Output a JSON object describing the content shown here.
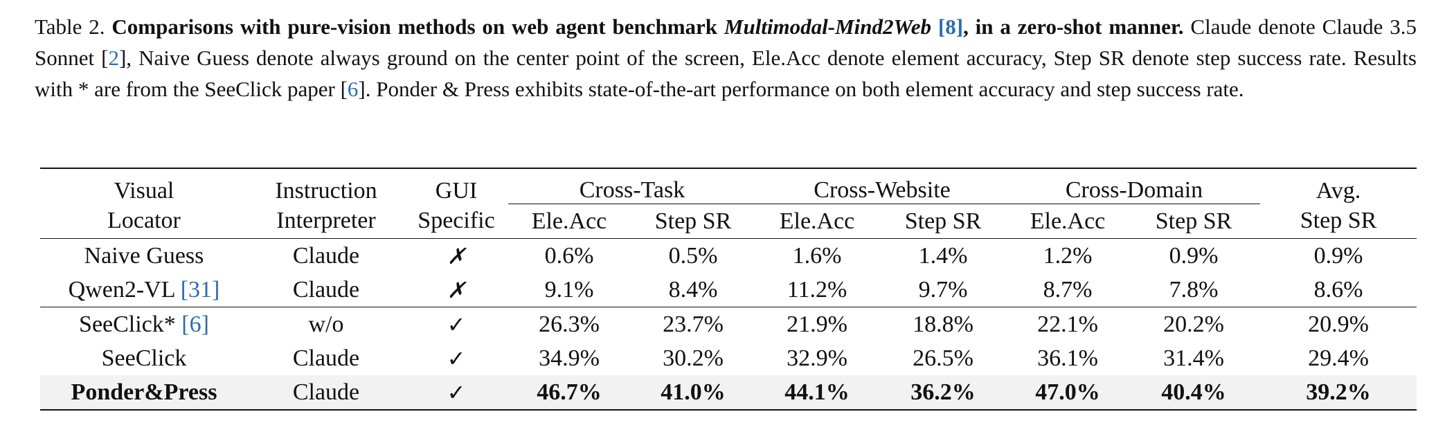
{
  "caption": {
    "label": "Table 2.",
    "bold_part1": "Comparisons with pure-vision methods on web agent benchmark",
    "bold_italic_part": "Multimodal-Mind2Web",
    "ref1": "[8]",
    "bold_part2": ", in a zero-shot manner.",
    "text1": "Claude denote Claude 3.5 Sonnet [",
    "ref2": "2",
    "text2": "], Naive Guess denote always ground on the center point of the screen, Ele.Acc denote element accuracy, Step SR denote step success rate. Results with * are from the SeeClick paper [",
    "ref3": "6",
    "text3": "]. Ponder & Press exhibits state-of-the-art performance on both element accuracy and step success rate."
  },
  "table": {
    "headers": {
      "visual_locator": [
        "Visual",
        "Locator"
      ],
      "instruction_interpreter": [
        "Instruction",
        "Interpreter"
      ],
      "gui_specific": [
        "GUI",
        "Specific"
      ],
      "groups": [
        "Cross-Task",
        "Cross-Website",
        "Cross-Domain"
      ],
      "avg": [
        "Avg.",
        "Step SR"
      ],
      "sub": [
        "Ele.Acc",
        "Step SR",
        "Ele.Acc",
        "Step SR",
        "Ele.Acc",
        "Step SR"
      ]
    },
    "rows": [
      {
        "locator": "Naive Guess",
        "locator_ref": "",
        "interpreter": "Claude",
        "gui": "✗",
        "values": [
          "0.6%",
          "0.5%",
          "1.6%",
          "1.4%",
          "1.2%",
          "0.9%",
          "0.9%"
        ]
      },
      {
        "locator": "Qwen2-VL ",
        "locator_ref": "[31]",
        "interpreter": "Claude",
        "gui": "✗",
        "values": [
          "9.1%",
          "8.4%",
          "11.2%",
          "9.7%",
          "8.7%",
          "7.8%",
          "8.6%"
        ]
      },
      {
        "locator": "SeeClick* ",
        "locator_ref": "[6]",
        "interpreter": "w/o",
        "gui": "✓",
        "values": [
          "26.3%",
          "23.7%",
          "21.9%",
          "18.8%",
          "22.1%",
          "20.2%",
          "20.9%"
        ]
      },
      {
        "locator": "SeeClick",
        "locator_ref": "",
        "interpreter": "Claude",
        "gui": "✓",
        "values": [
          "34.9%",
          "30.2%",
          "32.9%",
          "26.5%",
          "36.1%",
          "31.4%",
          "29.4%"
        ]
      },
      {
        "locator": "Ponder&Press",
        "locator_ref": "",
        "interpreter": "Claude",
        "gui": "✓",
        "values": [
          "46.7%",
          "41.0%",
          "44.1%",
          "36.2%",
          "47.0%",
          "40.4%",
          "39.2%"
        ]
      }
    ]
  }
}
